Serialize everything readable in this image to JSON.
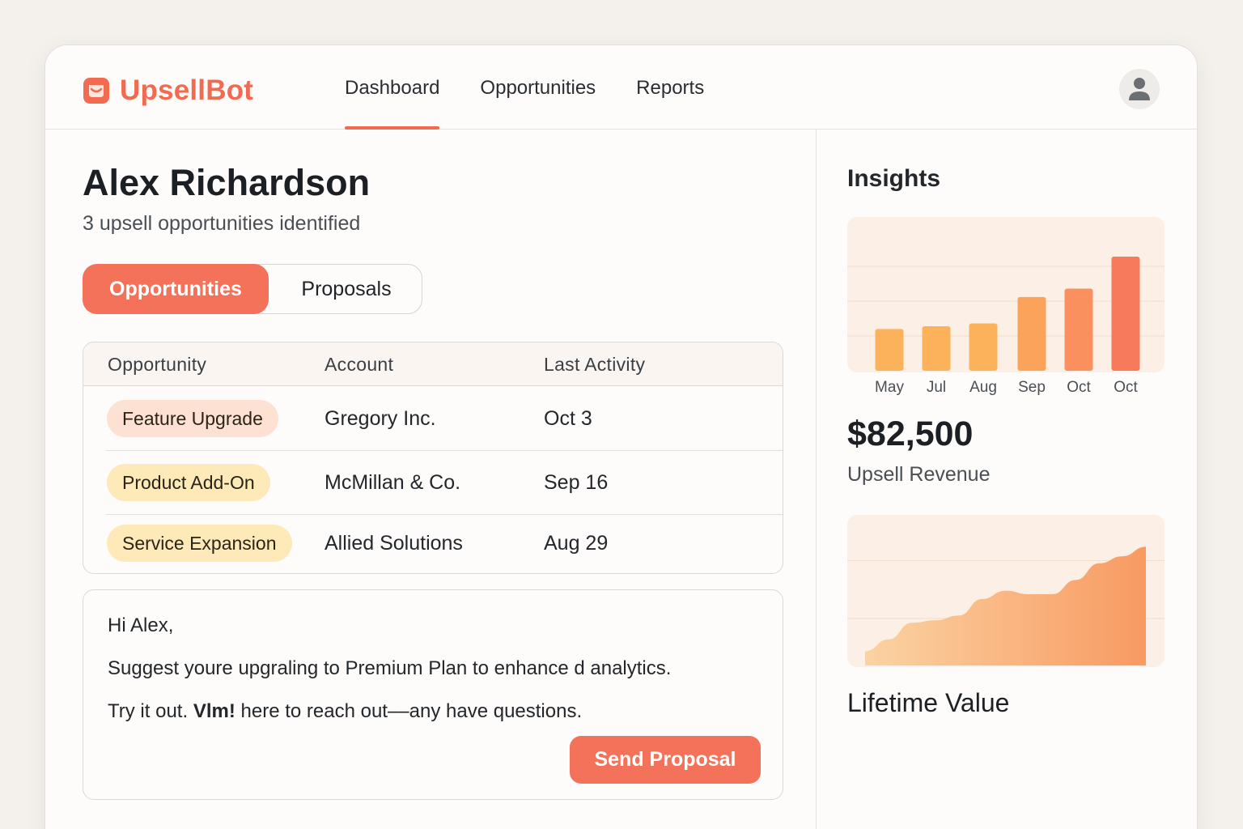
{
  "brand": {
    "name": "UpsellBot",
    "icon": "chat-box-icon",
    "color": "#f26a4f"
  },
  "nav": {
    "items": [
      {
        "label": "Dashboard",
        "active": true
      },
      {
        "label": "Opportunities",
        "active": false
      },
      {
        "label": "Reports",
        "active": false
      }
    ],
    "avatar_icon": "user-icon"
  },
  "customer": {
    "name": "Alex Richardson",
    "subtitle": "3 upsell opportunities identified"
  },
  "tabs": {
    "active": "Opportunities",
    "inactive": "Proposals"
  },
  "table": {
    "headers": [
      "Opportunity",
      "Account",
      "Last Activity"
    ],
    "rows": [
      {
        "opportunity": "Feature Upgrade",
        "account": "Gregory Inc.",
        "last_activity": "Oct 3",
        "pill_color": "#fde1d3"
      },
      {
        "opportunity": "Product Add-On",
        "account": "McMillan & Co.",
        "last_activity": "Sep 16",
        "pill_color": "#fdeab8"
      },
      {
        "opportunity": "Service Expansion",
        "account": "Allied Solutions",
        "last_activity": "Aug 29",
        "pill_color": "#fdeab8"
      }
    ]
  },
  "email": {
    "greeting": "Hi Alex,",
    "line1": "Suggest youre upgraling to Premium Plan to enhance d analytics.",
    "line2_prefix": "Try it out.",
    "line2_bold": "Vlm!",
    "line2_suffix": "here to reach out––any have questions.",
    "send_label": "Send Proposal"
  },
  "insights": {
    "title": "Insights",
    "revenue_value": "$82,500",
    "revenue_label": "Upsell Revenue",
    "lifetime_label": "Lifetime Value"
  },
  "chart_data": [
    {
      "type": "bar",
      "categories": [
        "May",
        "Jul",
        "Aug",
        "Sep",
        "Oct",
        "Oct"
      ],
      "values": [
        30,
        32,
        34,
        53,
        59,
        82
      ],
      "ylim": [
        0,
        100
      ],
      "grid": true,
      "colors": [
        "#fbb25a",
        "#fbb25a",
        "#fbb25a",
        "#fba35a",
        "#f9905d",
        "#f77a5c"
      ]
    },
    {
      "type": "area",
      "x": [
        0,
        1,
        2,
        3,
        4,
        5,
        6,
        7,
        8,
        9,
        10,
        11,
        12
      ],
      "values": [
        12,
        22,
        36,
        38,
        42,
        56,
        63,
        60,
        60,
        72,
        86,
        92,
        100
      ],
      "ylim": [
        0,
        120
      ],
      "grid": true,
      "colors": [
        "#fbd3a3",
        "#f89a62"
      ]
    }
  ]
}
